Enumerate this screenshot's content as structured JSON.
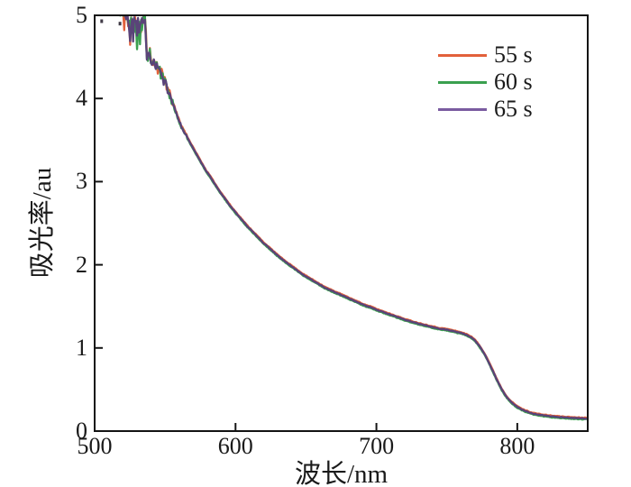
{
  "figure": {
    "background": "#ffffff",
    "axis_color": "#141414",
    "text_color": "#1a1a1a"
  },
  "chart_data": {
    "type": "line",
    "title": "",
    "xlabel": "波长/nm",
    "ylabel": "吸光率/au",
    "xlim": [
      500,
      850
    ],
    "ylim": [
      0,
      5
    ],
    "x_ticks": [
      500,
      600,
      700,
      800
    ],
    "y_ticks": [
      0,
      1,
      2,
      3,
      4,
      5
    ],
    "grid": false,
    "legend_position": "upper right",
    "series": [
      {
        "name": "55 s",
        "color": "#E2613B",
        "legend_color": "#E2613B",
        "offset": 0.01,
        "seed": 11
      },
      {
        "name": "60 s",
        "color": "#3AA04F",
        "legend_color": "#3AA04F",
        "offset": -0.01,
        "seed": 23
      },
      {
        "name": "65 s",
        "color": "#5A4379",
        "legend_color": "#7A5BA0",
        "offset": 0.0,
        "seed": 37
      }
    ],
    "note": "Three absorbance spectra nearly overlap; signal is saturated and noisy below ~537 nm (clipped at 5 au), smooth decay to a plateau near 1.2 au around 750 nm, then a sharp absorption edge near 780 nm down to ~0.15 au at 850 nm.",
    "common_curve": [
      [
        500,
        5.08
      ],
      [
        503,
        5.12
      ],
      [
        506,
        5.06
      ],
      [
        509,
        5.1
      ],
      [
        512,
        5.05
      ],
      [
        515,
        5.1
      ],
      [
        518,
        5.04
      ],
      [
        520,
        5.02
      ],
      [
        521,
        4.97
      ],
      [
        522,
        5.04
      ],
      [
        523,
        5.0
      ],
      [
        524,
        4.9
      ],
      [
        525,
        4.82
      ],
      [
        526,
        4.98
      ],
      [
        527,
        4.78
      ],
      [
        528,
        4.9
      ],
      [
        529,
        4.96
      ],
      [
        530,
        4.78
      ],
      [
        531,
        4.9
      ],
      [
        532,
        4.8
      ],
      [
        533,
        4.96
      ],
      [
        534,
        4.88
      ],
      [
        535,
        5.0
      ],
      [
        536,
        4.97
      ],
      [
        537,
        4.52
      ],
      [
        538,
        4.48
      ],
      [
        539,
        4.58
      ],
      [
        540,
        4.47
      ],
      [
        541,
        4.4
      ],
      [
        542,
        4.5
      ],
      [
        543,
        4.36
      ],
      [
        544,
        4.44
      ],
      [
        545,
        4.3
      ],
      [
        546,
        4.38
      ],
      [
        547,
        4.27
      ],
      [
        548,
        4.32
      ],
      [
        549,
        4.2
      ],
      [
        550,
        4.26
      ],
      [
        551,
        4.14
      ],
      [
        552,
        4.1
      ],
      [
        553,
        4.05
      ],
      [
        554,
        4.0
      ],
      [
        556,
        3.92
      ],
      [
        558,
        3.82
      ],
      [
        560,
        3.73
      ],
      [
        562,
        3.65
      ],
      [
        565,
        3.56
      ],
      [
        568,
        3.46
      ],
      [
        570,
        3.4
      ],
      [
        573,
        3.31
      ],
      [
        576,
        3.22
      ],
      [
        579,
        3.13
      ],
      [
        582,
        3.06
      ],
      [
        585,
        2.98
      ],
      [
        588,
        2.9
      ],
      [
        591,
        2.83
      ],
      [
        594,
        2.76
      ],
      [
        597,
        2.69
      ],
      [
        600,
        2.63
      ],
      [
        604,
        2.55
      ],
      [
        608,
        2.47
      ],
      [
        612,
        2.4
      ],
      [
        616,
        2.33
      ],
      [
        620,
        2.26
      ],
      [
        624,
        2.2
      ],
      [
        628,
        2.14
      ],
      [
        632,
        2.08
      ],
      [
        636,
        2.03
      ],
      [
        640,
        1.98
      ],
      [
        644,
        1.93
      ],
      [
        648,
        1.88
      ],
      [
        652,
        1.84
      ],
      [
        656,
        1.8
      ],
      [
        660,
        1.76
      ],
      [
        664,
        1.72
      ],
      [
        668,
        1.69
      ],
      [
        672,
        1.66
      ],
      [
        676,
        1.63
      ],
      [
        680,
        1.6
      ],
      [
        684,
        1.57
      ],
      [
        688,
        1.54
      ],
      [
        692,
        1.51
      ],
      [
        696,
        1.49
      ],
      [
        700,
        1.46
      ],
      [
        705,
        1.43
      ],
      [
        710,
        1.4
      ],
      [
        715,
        1.37
      ],
      [
        720,
        1.34
      ],
      [
        725,
        1.315
      ],
      [
        730,
        1.29
      ],
      [
        735,
        1.27
      ],
      [
        740,
        1.25
      ],
      [
        745,
        1.23
      ],
      [
        750,
        1.22
      ],
      [
        755,
        1.2
      ],
      [
        760,
        1.18
      ],
      [
        765,
        1.15
      ],
      [
        768,
        1.12
      ],
      [
        771,
        1.07
      ],
      [
        774,
        1.0
      ],
      [
        777,
        0.92
      ],
      [
        780,
        0.82
      ],
      [
        783,
        0.71
      ],
      [
        786,
        0.6
      ],
      [
        789,
        0.5
      ],
      [
        792,
        0.42
      ],
      [
        795,
        0.36
      ],
      [
        798,
        0.315
      ],
      [
        801,
        0.28
      ],
      [
        805,
        0.245
      ],
      [
        810,
        0.215
      ],
      [
        815,
        0.197
      ],
      [
        820,
        0.185
      ],
      [
        825,
        0.175
      ],
      [
        830,
        0.168
      ],
      [
        835,
        0.162
      ],
      [
        840,
        0.157
      ],
      [
        845,
        0.153
      ],
      [
        850,
        0.15
      ]
    ],
    "noise_bands": [
      {
        "from": 500,
        "to": 521,
        "amp": 0.045
      },
      {
        "from": 521,
        "to": 537,
        "amp": 0.095
      },
      {
        "from": 537,
        "to": 556,
        "amp": 0.05
      },
      {
        "from": 556,
        "to": 566,
        "amp": 0.015
      },
      {
        "from": 566,
        "to": 850,
        "amp": 0.004
      }
    ],
    "flecks": [
      [
        505,
        4.93
      ],
      [
        518,
        4.9
      ]
    ]
  }
}
